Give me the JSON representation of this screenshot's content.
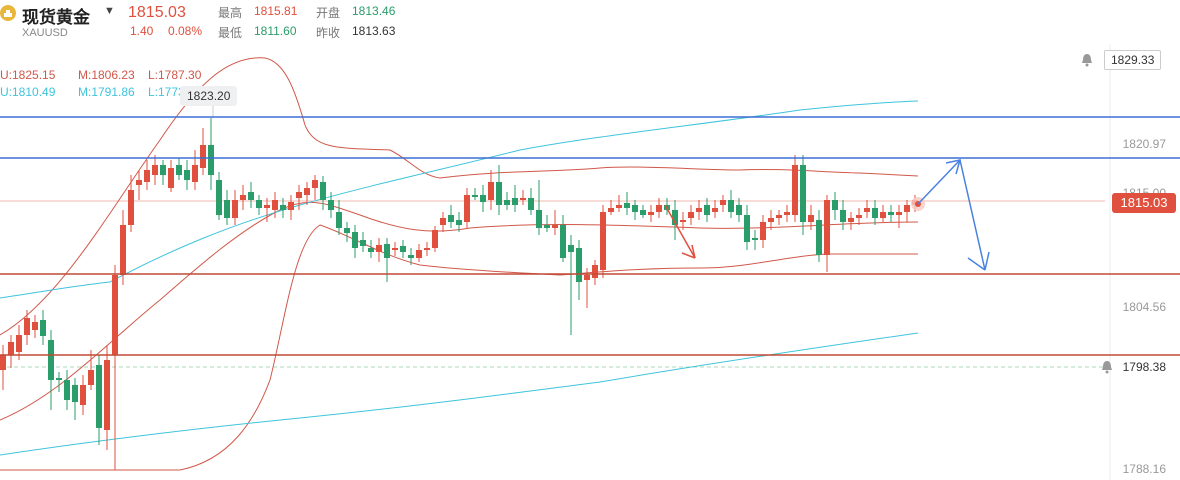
{
  "header": {
    "symbol_name": "现货黄金",
    "symbol_code": "XAUUSD",
    "last_price": "1815.03",
    "change": "1.40",
    "change_pct": "0.08%",
    "high_label": "最高",
    "high": "1815.81",
    "open_label": "开盘",
    "open": "1813.46",
    "low_label": "最低",
    "low": "1811.60",
    "prev_label": "昨收",
    "prev_close": "1813.63"
  },
  "bollinger": {
    "upper": "U:1825.15",
    "middle": "M:1806.23",
    "lower": "L:1787.30"
  },
  "bollinger2": {
    "upper": "U:1810.49",
    "middle": "M:1791.86",
    "lower": "L:1773.29"
  },
  "annotations": {
    "high_marker": "1823.20",
    "current_price_tag": "1815.03",
    "alert_top": "1829.33",
    "alert_bottom": "1798.38"
  },
  "axis": {
    "labels": [
      "1820.97",
      "1815.00",
      "1804.56",
      "1788.16"
    ]
  },
  "colors": {
    "up": "#e0503e",
    "down": "#2a9d6a",
    "boll": "#d0584a",
    "ma": "#3ec4dc",
    "resist": "#3b6fd6",
    "support": "#c04a36",
    "arrow": "#4a82e0"
  },
  "icons": {
    "symbol": "gold-bar-icon",
    "dropdown": "caret-down-icon",
    "alert": "bell-icon"
  }
}
